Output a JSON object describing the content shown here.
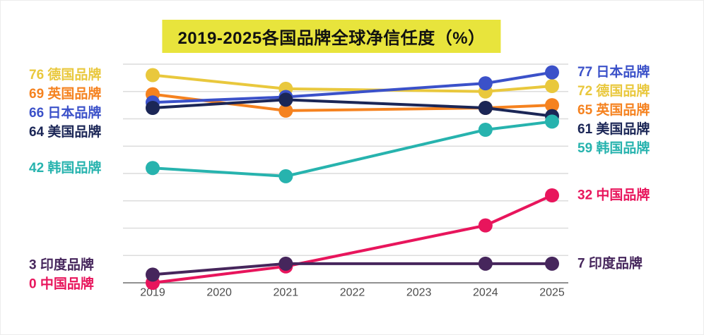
{
  "title": "2019-2025各国品牌全球净信任度（%）",
  "colors": {
    "background": "#FFFFFF",
    "title_bg": "#E8E43C",
    "title_text": "#111111",
    "grid": "#DCDCDC",
    "axis_line": "#919191",
    "tick_text": "#4C4C4C"
  },
  "chart_data": {
    "type": "line",
    "title": "2019-2025各国品牌全球净信任度（%）",
    "x_ticks": [
      "2019",
      "2020",
      "2021",
      "2022",
      "2023",
      "2024",
      "2025"
    ],
    "x": [
      2019,
      2021,
      2024,
      2025
    ],
    "ylim": [
      0,
      80
    ],
    "grid": true,
    "legend_position": "inline-left-right",
    "series": [
      {
        "key": "germany",
        "name": "德国品牌",
        "color": "#E9C83D",
        "values": [
          76,
          71,
          70,
          72
        ],
        "label_left": "76 德国品牌",
        "label_right": "72 德国品牌"
      },
      {
        "key": "uk",
        "name": "英国品牌",
        "color": "#F5821F",
        "values": [
          69,
          63,
          64,
          65
        ],
        "label_left": "69 英国品牌",
        "label_right": "65 英国品牌"
      },
      {
        "key": "japan",
        "name": "日本品牌",
        "color": "#3B51C9",
        "values": [
          66,
          68,
          73,
          77
        ],
        "label_left": "66 日本品牌",
        "label_right": "77 日本品牌"
      },
      {
        "key": "usa",
        "name": "美国品牌",
        "color": "#1B2656",
        "values": [
          64,
          67,
          64,
          61
        ],
        "label_left": "64 美国品牌",
        "label_right": "61 美国品牌"
      },
      {
        "key": "korea",
        "name": "韩国品牌",
        "color": "#27B3AE",
        "values": [
          42,
          39,
          56,
          59
        ],
        "label_left": "42 韩国品牌",
        "label_right": "59 韩国品牌"
      },
      {
        "key": "china",
        "name": "中国品牌",
        "color": "#E8155C",
        "values": [
          0,
          6,
          21,
          32
        ],
        "label_left": "0 中国品牌",
        "label_right": "32 中国品牌"
      },
      {
        "key": "india",
        "name": "印度品牌",
        "color": "#46265C",
        "values": [
          3,
          7,
          7,
          7
        ],
        "label_left": "3 印度品牌",
        "label_right": "7 印度品牌"
      }
    ]
  }
}
